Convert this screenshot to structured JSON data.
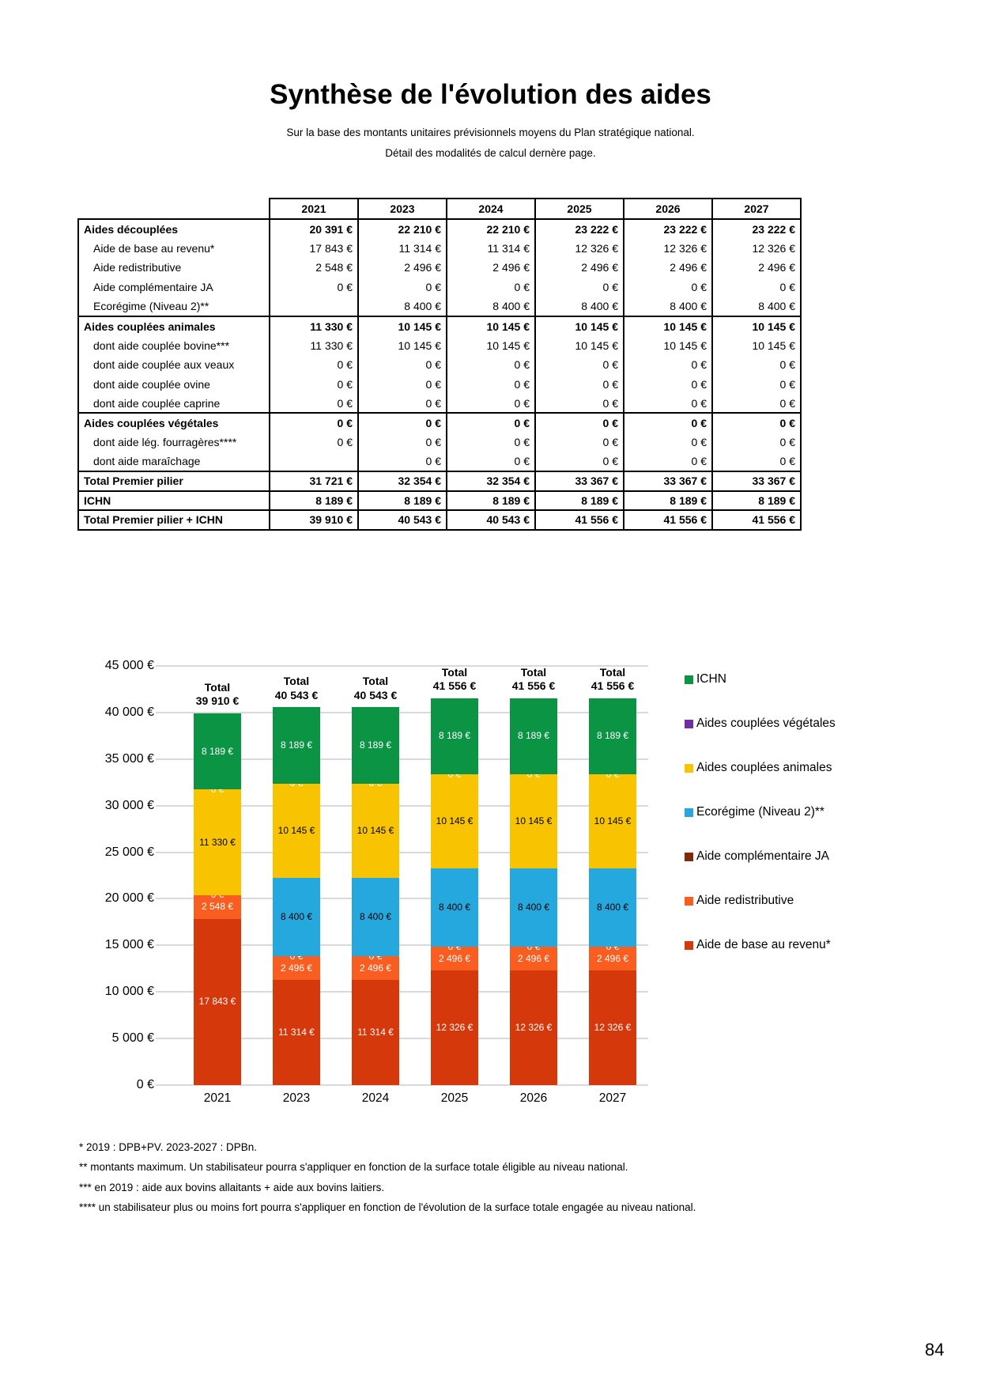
{
  "page": {
    "title": "Synthèse de l'évolution des aides",
    "subtitle1": "Sur la base des montants unitaires prévisionnels moyens du Plan stratégique national.",
    "subtitle2": "Détail des modalités de calcul dernère page.",
    "page_number": "84"
  },
  "table": {
    "columns": [
      "2021",
      "2023",
      "2024",
      "2025",
      "2026",
      "2027"
    ],
    "rows": [
      {
        "label": "Aides découplées",
        "bold": true,
        "group": true,
        "indent": false,
        "values": [
          "20 391 €",
          "22 210 €",
          "22 210 €",
          "23 222 €",
          "23 222 €",
          "23 222 €"
        ]
      },
      {
        "label": "Aide de base au revenu*",
        "bold": false,
        "group": false,
        "indent": true,
        "values": [
          "17 843 €",
          "11 314 €",
          "11 314 €",
          "12 326 €",
          "12 326 €",
          "12 326 €"
        ]
      },
      {
        "label": "Aide redistributive",
        "bold": false,
        "group": false,
        "indent": true,
        "values": [
          "2 548 €",
          "2 496 €",
          "2 496 €",
          "2 496 €",
          "2 496 €",
          "2 496 €"
        ]
      },
      {
        "label": "Aide complémentaire JA",
        "bold": false,
        "group": false,
        "indent": true,
        "values": [
          "0 €",
          "0 €",
          "0 €",
          "0 €",
          "0 €",
          "0 €"
        ]
      },
      {
        "label": "Ecorégime (Niveau 2)**",
        "bold": false,
        "group": false,
        "indent": true,
        "values": [
          "",
          "8 400 €",
          "8 400 €",
          "8 400 €",
          "8 400 €",
          "8 400 €"
        ]
      },
      {
        "label": "Aides couplées animales",
        "bold": true,
        "group": true,
        "indent": false,
        "values": [
          "11 330 €",
          "10 145 €",
          "10 145 €",
          "10 145 €",
          "10 145 €",
          "10 145 €"
        ]
      },
      {
        "label": "dont aide couplée bovine***",
        "bold": false,
        "group": false,
        "indent": true,
        "values": [
          "11 330 €",
          "10 145 €",
          "10 145 €",
          "10 145 €",
          "10 145 €",
          "10 145 €"
        ]
      },
      {
        "label": "dont aide couplée aux veaux",
        "bold": false,
        "group": false,
        "indent": true,
        "values": [
          "0 €",
          "0 €",
          "0 €",
          "0 €",
          "0 €",
          "0 €"
        ]
      },
      {
        "label": "dont aide couplée ovine",
        "bold": false,
        "group": false,
        "indent": true,
        "values": [
          "0 €",
          "0 €",
          "0 €",
          "0 €",
          "0 €",
          "0 €"
        ]
      },
      {
        "label": "dont aide couplée caprine",
        "bold": false,
        "group": false,
        "indent": true,
        "values": [
          "0 €",
          "0 €",
          "0 €",
          "0 €",
          "0 €",
          "0 €"
        ]
      },
      {
        "label": "Aides couplées végétales",
        "bold": true,
        "group": true,
        "indent": false,
        "values": [
          "0 €",
          "0 €",
          "0 €",
          "0 €",
          "0 €",
          "0 €"
        ]
      },
      {
        "label": "dont aide lég. fourragères****",
        "bold": false,
        "group": false,
        "indent": true,
        "values": [
          "0 €",
          "0 €",
          "0 €",
          "0 €",
          "0 €",
          "0 €"
        ]
      },
      {
        "label": "dont aide maraîchage",
        "bold": false,
        "group": false,
        "indent": true,
        "values": [
          "",
          "0 €",
          "0 €",
          "0 €",
          "0 €",
          "0 €"
        ]
      },
      {
        "label": "Total Premier pilier",
        "bold": true,
        "group": true,
        "indent": false,
        "values": [
          "31 721 €",
          "32 354 €",
          "32 354 €",
          "33 367 €",
          "33 367 €",
          "33 367 €"
        ]
      },
      {
        "label": "ICHN",
        "bold": true,
        "group": true,
        "indent": false,
        "values": [
          "8 189 €",
          "8 189 €",
          "8 189 €",
          "8 189 €",
          "8 189 €",
          "8 189 €"
        ]
      },
      {
        "label": "Total Premier pilier + ICHN",
        "bold": true,
        "group": true,
        "indent": false,
        "values": [
          "39 910 €",
          "40 543 €",
          "40 543 €",
          "41 556 €",
          "41 556 €",
          "41 556 €"
        ]
      }
    ]
  },
  "chart_data": {
    "type": "bar",
    "subtype": "stacked",
    "categories": [
      "2021",
      "2023",
      "2024",
      "2025",
      "2026",
      "2027"
    ],
    "series": [
      {
        "name": "Aide de base au revenu*",
        "color": "#D5390B",
        "label_color": "#FFFFFF",
        "values": [
          17843,
          11314,
          11314,
          12326,
          12326,
          12326
        ],
        "labels": [
          "17 843 €",
          "11 314 €",
          "11 314 €",
          "12 326 €",
          "12 326 €",
          "12 326 €"
        ]
      },
      {
        "name": "Aide redistributive",
        "color": "#F95D20",
        "label_color": "#FFFFFF",
        "values": [
          2548,
          2496,
          2496,
          2496,
          2496,
          2496
        ],
        "labels": [
          "2 548 €",
          "2 496 €",
          "2 496 €",
          "2 496 €",
          "2 496 €",
          "2 496 €"
        ]
      },
      {
        "name": "Aide complémentaire JA",
        "color": "#7E2A0B",
        "label_color": "#FFFFFF",
        "values": [
          0,
          0,
          0,
          0,
          0,
          0
        ],
        "labels": [
          "0 €",
          "0 €",
          "0 €",
          "0 €",
          "0 €",
          "0 €"
        ]
      },
      {
        "name": "Ecorégime (Niveau 2)**",
        "color": "#25A8DE",
        "label_color": "#000000",
        "values": [
          null,
          8400,
          8400,
          8400,
          8400,
          8400
        ],
        "labels": [
          "",
          "8 400 €",
          "8 400 €",
          "8 400 €",
          "8 400 €",
          "8 400 €"
        ]
      },
      {
        "name": "Aides couplées animales",
        "color": "#F8C301",
        "label_color": "#000000",
        "values": [
          11330,
          10145,
          10145,
          10145,
          10145,
          10145
        ],
        "labels": [
          "11 330 €",
          "10 145 €",
          "10 145 €",
          "10 145 €",
          "10 145 €",
          "10 145 €"
        ]
      },
      {
        "name": "Aides couplées végétales",
        "color": "#7030A0",
        "label_color": "#FFFFFF",
        "values": [
          0,
          0,
          0,
          0,
          0,
          0
        ],
        "labels": [
          "0 €",
          "0 €",
          "0 €",
          "0 €",
          "0 €",
          "0 €"
        ]
      },
      {
        "name": "ICHN",
        "color": "#0B9444",
        "label_color": "#FFFFFF",
        "values": [
          8189,
          8189,
          8189,
          8189,
          8189,
          8189
        ],
        "labels": [
          "8 189 €",
          "8 189 €",
          "8 189 €",
          "8 189 €",
          "8 189 €",
          "8 189 €"
        ]
      }
    ],
    "totals": {
      "prefix": "Total",
      "values": [
        "39 910 €",
        "40 543 €",
        "40 543 €",
        "41 556 €",
        "41 556 €",
        "41 556 €"
      ]
    },
    "y_ticks": [
      "45 000 €",
      "40 000 €",
      "35 000 €",
      "30 000 €",
      "25 000 €",
      "20 000 €",
      "15 000 €",
      "10 000 €",
      "5 000 €",
      "0 €"
    ],
    "ylim": [
      0,
      45000
    ],
    "grid": true,
    "legend_position": "right",
    "legend_order_top_to_bottom": [
      "ICHN",
      "Aides couplées végétales",
      "Aides couplées animales",
      "Ecorégime (Niveau 2)**",
      "Aide complémentaire JA",
      "Aide redistributive",
      "Aide de base au revenu*"
    ]
  },
  "footnotes": [
    "* 2019 : DPB+PV. 2023-2027 : DPBn.",
    "** montants maximum. Un stabilisateur pourra s'appliquer en fonction de la surface totale éligible au niveau national.",
    "*** en 2019 : aide aux bovins allaitants + aide aux bovins laitiers.",
    "**** un stabilisateur plus ou moins fort pourra s'appliquer en fonction de l'évolution de la surface totale engagée au niveau national."
  ]
}
